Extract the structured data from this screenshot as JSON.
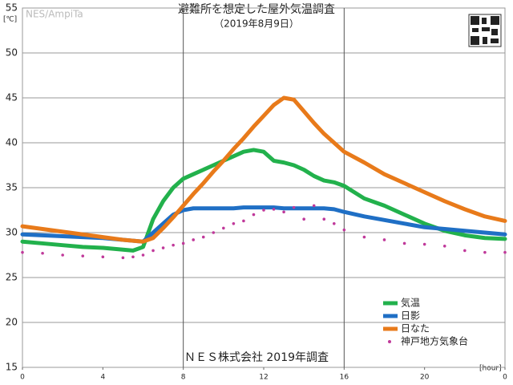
{
  "chart_data": {
    "type": "line",
    "title": "避難所を想定した屋外気温調査",
    "subtitle": "（2019年8月9日）",
    "watermark": "NES/AmpiTa",
    "y_label": "[℃]",
    "x_label": "[hour]",
    "annotation": "ＮＥＳ株式会社 2019年調査",
    "x": [
      0,
      1,
      2,
      3,
      4,
      5,
      5.5,
      6,
      6.5,
      7,
      7.5,
      8,
      8.5,
      9,
      9.5,
      10,
      10.5,
      11,
      11.5,
      12,
      12.5,
      13,
      13.5,
      14,
      14.5,
      15,
      15.5,
      16,
      17,
      18,
      19,
      20,
      21,
      22,
      23,
      24
    ],
    "series": [
      {
        "name": "気温",
        "color": "#22b14c",
        "marker": "line",
        "values": [
          29.0,
          28.8,
          28.6,
          28.4,
          28.3,
          28.1,
          28.0,
          28.4,
          31.5,
          33.5,
          35,
          36,
          36.5,
          37,
          37.5,
          38,
          38.5,
          39,
          39.2,
          39,
          38,
          37.8,
          37.5,
          37,
          36.3,
          35.8,
          35.6,
          35.2,
          33.8,
          33,
          32,
          31,
          30.2,
          29.7,
          29.4,
          29.3
        ]
      },
      {
        "name": "日影",
        "color": "#1f6fc5",
        "marker": "line",
        "values": [
          29.8,
          29.7,
          29.6,
          29.5,
          29.4,
          29.2,
          29.1,
          29.0,
          30,
          31,
          32,
          32.5,
          32.7,
          32.7,
          32.7,
          32.7,
          32.7,
          32.8,
          32.8,
          32.8,
          32.8,
          32.7,
          32.7,
          32.7,
          32.7,
          32.7,
          32.6,
          32.3,
          31.8,
          31.4,
          31,
          30.6,
          30.4,
          30.2,
          30.0,
          29.8
        ]
      },
      {
        "name": "日なた",
        "color": "#e87a1a",
        "marker": "line",
        "values": [
          30.7,
          30.4,
          30.1,
          29.8,
          29.5,
          29.2,
          29.1,
          29.0,
          29.4,
          30.5,
          31.7,
          33,
          34.3,
          35.5,
          36.8,
          38,
          39.3,
          40.5,
          41.8,
          43,
          44.2,
          45,
          44.8,
          43.5,
          42.2,
          41,
          40,
          39,
          37.8,
          36.5,
          35.5,
          34.5,
          33.5,
          32.6,
          31.8,
          31.3
        ]
      },
      {
        "name": "神戸地方気象台",
        "color": "#c0399a",
        "marker": "dots",
        "values": [
          27.8,
          27.7,
          27.5,
          27.4,
          27.3,
          27.2,
          27.3,
          27.5,
          28,
          28.3,
          28.6,
          28.8,
          29.2,
          29.5,
          30,
          30.5,
          31,
          31.3,
          32,
          32.5,
          32.6,
          32.3,
          32.8,
          31.5,
          33,
          31.5,
          31,
          30.3,
          29.5,
          29.2,
          28.8,
          28.7,
          28.5,
          28.0,
          27.8,
          27.8
        ]
      }
    ],
    "xlim": [
      0,
      24
    ],
    "xticks": [
      0,
      4,
      8,
      12,
      16,
      20,
      {
        "value": 24,
        "label": "0"
      }
    ],
    "xgrid": [
      8,
      16
    ],
    "ylim": [
      15,
      55
    ],
    "yticks": [
      15,
      20,
      25,
      30,
      35,
      40,
      45,
      50,
      55
    ],
    "grid": true,
    "legend": "lower right"
  }
}
